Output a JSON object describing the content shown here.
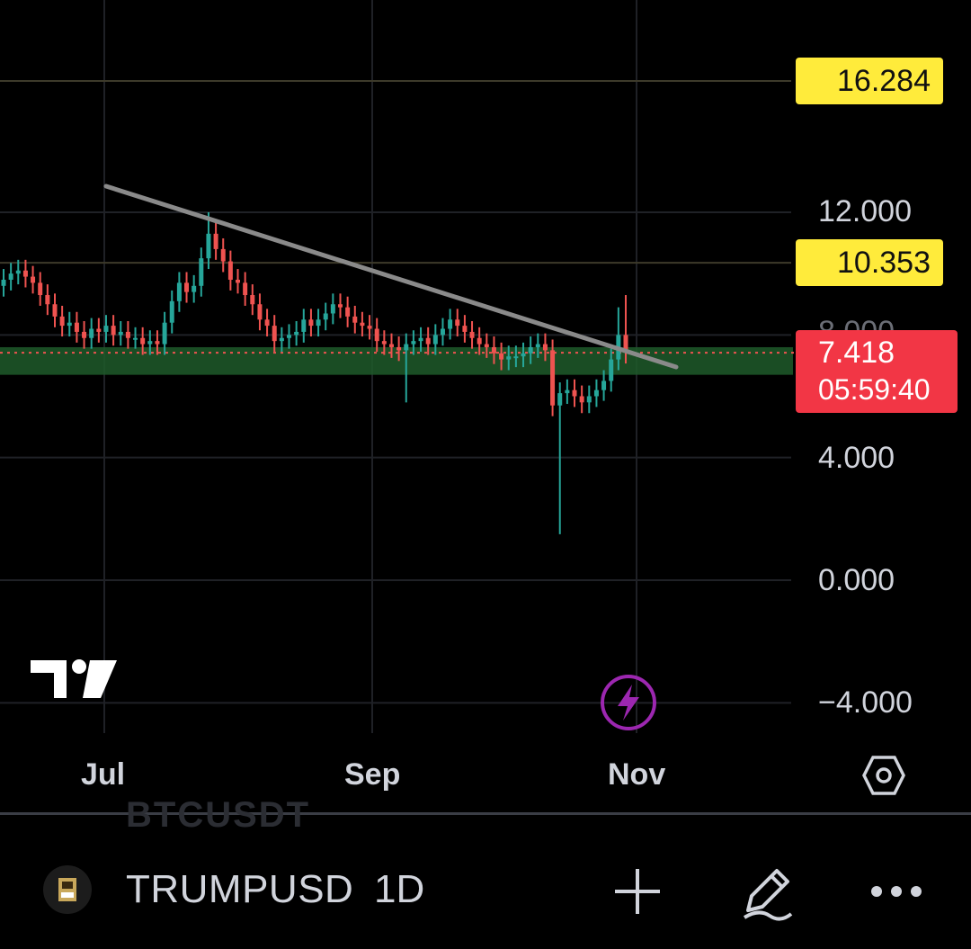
{
  "chart": {
    "price_axis": [
      "16.284",
      "12.000",
      "10.353",
      "8.000",
      "7.418",
      "4.000",
      "0.000",
      "-4.000"
    ],
    "tags": {
      "high": "16.284",
      "mid": "10.353",
      "current_price": "7.418",
      "countdown": "05:59:40"
    },
    "axis_labels": {
      "l12": "12.000",
      "l8": "8.000",
      "l4": "4.000",
      "l0": "0.000",
      "lneg4": "−4.000"
    },
    "dates": [
      "Jul",
      "Sep",
      "Nov"
    ],
    "colors": {
      "up": "#26a69a",
      "down": "#ef5350",
      "zone": "#1e5a2a",
      "trendline": "#8a8a8a",
      "tag_yellow": "#ffeb3b",
      "tag_red": "#f23645",
      "lightning": "#9c27b0"
    }
  },
  "toolbar": {
    "ghost_symbol": "BTCUSDT",
    "symbol": "TRUMPUSD",
    "interval": "1D",
    "icons": [
      "plus-icon",
      "pencil-icon",
      "more-icon"
    ]
  },
  "chart_data": {
    "type": "candlestick",
    "x": [
      "Jul",
      "Sep",
      "Nov"
    ],
    "ylim": [
      -4,
      16.5
    ],
    "y_ticks": [
      12,
      8,
      4,
      0,
      -4
    ],
    "last_price": 7.418,
    "horizontal_levels": [
      16.284,
      10.353
    ],
    "support_zone": [
      6.7,
      7.6
    ],
    "series_approx": [
      9.8,
      10.0,
      10.1,
      9.9,
      9.7,
      9.3,
      9.0,
      8.6,
      8.3,
      8.4,
      8.1,
      7.9,
      8.2,
      8.1,
      8.3,
      8.0,
      8.1,
      7.9,
      7.9,
      7.7,
      7.8,
      7.7,
      8.4,
      9.1,
      9.7,
      9.4,
      9.6,
      10.5,
      11.3,
      10.8,
      10.4,
      9.8,
      9.7,
      9.3,
      9.0,
      8.5,
      8.3,
      7.8,
      7.9,
      8.0,
      8.1,
      8.5,
      8.3,
      8.5,
      8.7,
      9.0,
      8.9,
      8.6,
      8.4,
      8.3,
      8.2,
      7.8,
      7.7,
      7.6,
      7.5,
      7.7,
      7.8,
      7.9,
      7.7,
      8.0,
      8.2,
      8.5,
      8.3,
      8.1,
      7.9,
      7.7,
      7.6,
      7.4,
      7.2,
      7.3,
      7.3,
      7.4,
      7.6,
      7.7,
      7.5,
      5.7,
      6.1,
      6.2,
      6.0,
      5.8,
      6.0,
      6.2,
      6.5,
      7.2,
      8.0,
      7.418
    ]
  }
}
